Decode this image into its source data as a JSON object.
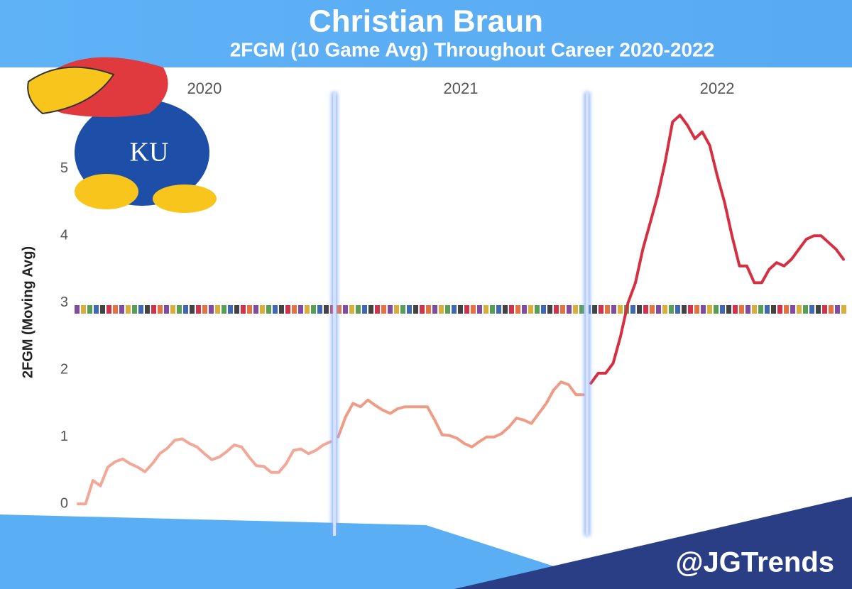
{
  "chart_data": {
    "type": "line",
    "title": "Christian Braun",
    "subtitle": "2FGM (10 Game Avg) Throughout Career 2020-2022",
    "y_label": "2FGM (Moving Avg)",
    "logo_text": "KU",
    "watermark": "@JGTrends",
    "xlim": [
      1,
      104
    ],
    "ylim": [
      -0.2,
      6.1
    ],
    "yticks": [
      0,
      1,
      2,
      3,
      4,
      5
    ],
    "grid": false,
    "series": [
      {
        "name": "2020",
        "color": "#f2a797",
        "x": [
          1,
          2,
          3,
          4,
          5,
          6,
          7,
          8,
          9,
          10,
          11,
          12,
          13,
          14,
          15,
          16,
          17,
          18,
          19,
          20,
          21,
          22,
          23,
          24,
          25,
          26,
          27,
          28,
          29,
          30,
          31,
          32,
          33,
          34,
          35
        ],
        "values": [
          0,
          0,
          0.35,
          0.27,
          0.55,
          0.63,
          0.67,
          0.6,
          0.55,
          0.48,
          0.6,
          0.75,
          0.83,
          0.95,
          0.97,
          0.9,
          0.85,
          0.75,
          0.66,
          0.7,
          0.78,
          0.88,
          0.85,
          0.7,
          0.57,
          0.56,
          0.47,
          0.47,
          0.6,
          0.8,
          0.82,
          0.75,
          0.8,
          0.88,
          0.93
        ]
      },
      {
        "name": "2021",
        "color": "#ee9c86",
        "x": [
          36,
          37,
          38,
          39,
          40,
          41,
          42,
          43,
          44,
          45,
          46,
          47,
          48,
          49,
          50,
          51,
          52,
          53,
          54,
          55,
          56,
          57,
          58,
          59,
          60,
          61,
          62,
          63,
          64,
          65,
          66,
          67,
          68,
          69
        ],
        "values": [
          1.0,
          1.3,
          1.5,
          1.45,
          1.55,
          1.47,
          1.4,
          1.35,
          1.42,
          1.45,
          1.45,
          1.45,
          1.45,
          1.25,
          1.03,
          1.02,
          0.98,
          0.9,
          0.85,
          0.93,
          1.0,
          1.0,
          1.05,
          1.15,
          1.28,
          1.25,
          1.2,
          1.35,
          1.5,
          1.7,
          1.82,
          1.78,
          1.63,
          1.63
        ]
      },
      {
        "name": "2022",
        "color": "#d62f42",
        "x": [
          70,
          71,
          72,
          73,
          74,
          75,
          76,
          77,
          78,
          79,
          80,
          81,
          82,
          83,
          84,
          85,
          86,
          87,
          88,
          89,
          90,
          91,
          92,
          93,
          94,
          95,
          96,
          97,
          98,
          99,
          100,
          101,
          102,
          103,
          104
        ],
        "values": [
          1.8,
          1.95,
          1.95,
          2.1,
          2.5,
          3.0,
          3.3,
          3.8,
          4.2,
          4.6,
          5.1,
          5.7,
          5.8,
          5.65,
          5.45,
          5.55,
          5.35,
          4.9,
          4.5,
          4.0,
          3.55,
          3.55,
          3.3,
          3.3,
          3.5,
          3.6,
          3.55,
          3.65,
          3.8,
          3.95,
          4.0,
          4.0,
          3.9,
          3.8,
          3.65
        ]
      }
    ]
  }
}
